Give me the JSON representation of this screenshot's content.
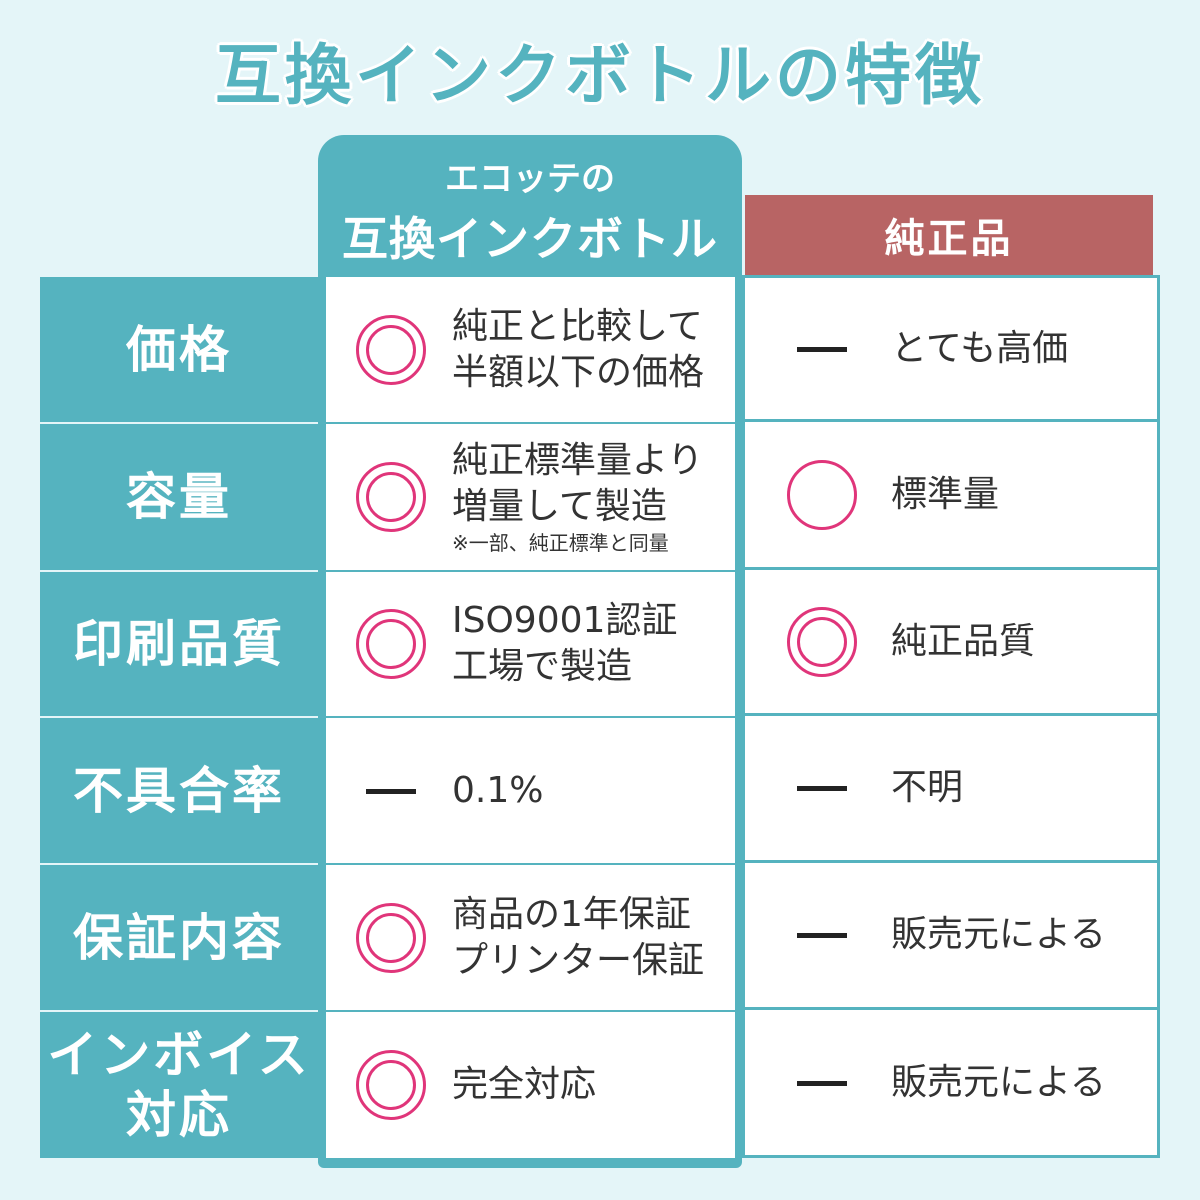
{
  "title": "互換インクボトルの特徴",
  "columns": {
    "ours_line1": "エコッテの",
    "ours_line2": "互換インクボトル",
    "genuine": "純正品"
  },
  "colors": {
    "teal": "#55b3bf",
    "red": "#b86464",
    "pink": "#e0357a",
    "background": "#e4f5f8"
  },
  "rows": [
    {
      "label": "価格",
      "ours": {
        "mark": "double-circle",
        "lines": [
          "純正と比較して",
          "半額以下の価格"
        ]
      },
      "genuine": {
        "mark": "dash",
        "text": "とても高価"
      }
    },
    {
      "label": "容量",
      "ours": {
        "mark": "double-circle",
        "lines": [
          "純正標準量より",
          "増量して製造"
        ],
        "note": "※一部、純正標準と同量"
      },
      "genuine": {
        "mark": "circle",
        "text": "標準量"
      }
    },
    {
      "label": "印刷品質",
      "ours": {
        "mark": "double-circle",
        "lines": [
          "ISO9001認証",
          "工場で製造"
        ]
      },
      "genuine": {
        "mark": "double-circle",
        "text": "純正品質"
      }
    },
    {
      "label": "不具合率",
      "ours": {
        "mark": "dash",
        "lines": [
          "0.1%"
        ]
      },
      "genuine": {
        "mark": "dash",
        "text": "不明"
      }
    },
    {
      "label": "保証内容",
      "ours": {
        "mark": "double-circle",
        "lines": [
          "商品の1年保証",
          "プリンター保証"
        ]
      },
      "genuine": {
        "mark": "dash",
        "text": "販売元による"
      }
    },
    {
      "label_lines": [
        "インボイス",
        "対応"
      ],
      "ours": {
        "mark": "double-circle",
        "lines": [
          "完全対応"
        ]
      },
      "genuine": {
        "mark": "dash",
        "text": "販売元による"
      }
    }
  ]
}
